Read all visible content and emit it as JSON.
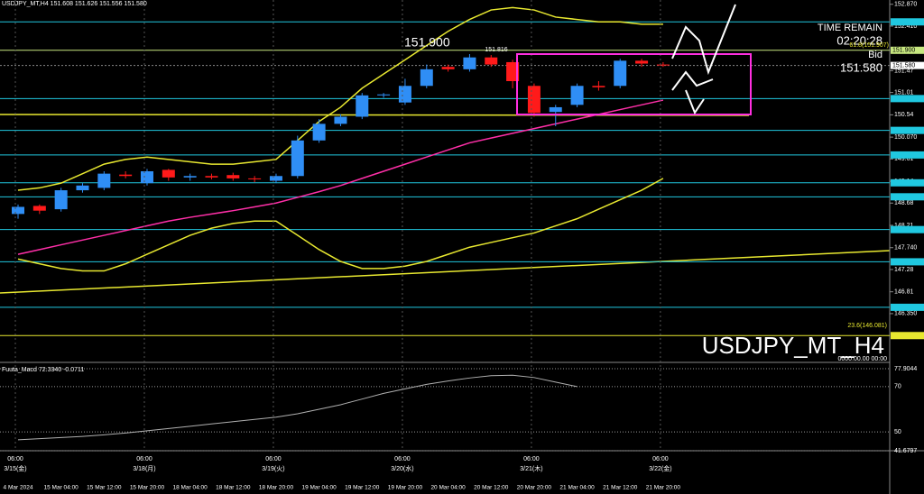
{
  "header": {
    "symbol": "USDJPY_MT,H4  151.608 151.626 151.556 151.580",
    "time_remain_label": "TIME REMAIN",
    "time_remain": "02:20:28",
    "bid_label": "Bid",
    "bid": "151.580",
    "high_mark": "151.816",
    "fib_top": "61.8(151.907)",
    "fib_bottom": "23.6(146.081)",
    "zero_time": "0000.00.00 00:00",
    "sessions": [
      {
        "time": "06:00",
        "date": "3/15(金)"
      },
      {
        "time": "06:00",
        "date": "3/18(月)"
      },
      {
        "time": "06:00",
        "date": "3/19(火)"
      },
      {
        "time": "06:00",
        "date": "3/20(水)"
      },
      {
        "time": "06:00",
        "date": "3/21(木)"
      },
      {
        "time": "06:00",
        "date": "3/22(金)"
      }
    ]
  },
  "chart_data": [
    {
      "type": "candlestick",
      "title": "USDJPY_MT_H4",
      "up_color": "#2f8ef5",
      "down_color": "#ff1a1a",
      "categories": [
        "4 Mar 2024",
        null,
        "15 Mar 04:00",
        null,
        "15 Mar 12:00",
        null,
        "15 Mar 20:00",
        null,
        "18 Mar 04:00",
        null,
        "18 Mar 12:00",
        null,
        "18 Mar 20:00",
        null,
        "19 Mar 04:00",
        null,
        "19 Mar 12:00",
        null,
        "19 Mar 20:00",
        null,
        "20 Mar 04:00",
        null,
        "20 Mar 12:00",
        null,
        "20 Mar 20:00",
        null,
        "21 Mar 04:00",
        null,
        "21 Mar 12:00",
        null,
        "21 Mar 20:00"
      ],
      "open": [
        148.45,
        148.62,
        148.55,
        148.95,
        149.0,
        149.28,
        149.1,
        149.38,
        149.22,
        149.25,
        149.27,
        149.2,
        149.15,
        149.25,
        150.0,
        150.35,
        150.5,
        150.95,
        150.8,
        151.15,
        151.55,
        151.5,
        151.75,
        151.65,
        151.15,
        150.6,
        150.75,
        151.15,
        151.15,
        151.68,
        151.6
      ],
      "high": [
        148.65,
        148.65,
        149.0,
        149.1,
        149.35,
        149.35,
        149.4,
        149.4,
        149.3,
        149.3,
        149.32,
        149.25,
        149.3,
        150.1,
        150.45,
        150.55,
        151.0,
        151.0,
        151.3,
        151.6,
        151.6,
        151.82,
        151.8,
        151.7,
        151.2,
        150.75,
        151.2,
        151.25,
        151.72,
        151.72,
        151.65
      ],
      "low": [
        148.35,
        148.45,
        148.5,
        148.9,
        148.95,
        149.2,
        149.05,
        149.15,
        149.15,
        149.18,
        149.15,
        149.12,
        149.1,
        149.2,
        149.95,
        150.3,
        150.45,
        150.9,
        150.75,
        151.1,
        151.45,
        151.45,
        151.55,
        151.1,
        150.5,
        150.3,
        150.7,
        151.05,
        151.1,
        151.55,
        151.55
      ],
      "close": [
        148.6,
        148.52,
        148.95,
        149.05,
        149.3,
        149.25,
        149.35,
        149.22,
        149.25,
        149.22,
        149.2,
        149.18,
        149.25,
        150.0,
        150.35,
        150.5,
        150.95,
        150.97,
        151.15,
        151.5,
        151.5,
        151.75,
        151.6,
        151.25,
        150.58,
        150.7,
        151.15,
        151.12,
        151.68,
        151.62,
        151.58
      ],
      "overlays": [
        {
          "color": "#e8e830",
          "values": [
            148.95,
            149.0,
            149.1,
            149.3,
            149.5,
            149.6,
            149.65,
            149.6,
            149.55,
            149.5,
            149.5,
            149.55,
            149.6,
            150.0,
            150.4,
            150.7,
            151.1,
            151.4,
            151.7,
            152.0,
            152.3,
            152.55,
            152.75,
            152.8,
            152.75,
            152.6,
            152.55,
            152.5,
            152.5,
            152.45,
            152.45
          ]
        },
        {
          "color": "#e8e830",
          "values": [
            147.5,
            147.4,
            147.3,
            147.25,
            147.25,
            147.4,
            147.6,
            147.8,
            148.0,
            148.15,
            148.25,
            148.3,
            148.3,
            148.0,
            147.7,
            147.45,
            147.3,
            147.3,
            147.35,
            147.45,
            147.6,
            147.75,
            147.85,
            147.95,
            148.05,
            148.2,
            148.35,
            148.55,
            148.75,
            148.95,
            149.2
          ]
        },
        {
          "color": "#ff2fa8",
          "values": [
            147.6,
            147.7,
            147.8,
            147.9,
            148.0,
            148.1,
            148.2,
            148.3,
            148.38,
            148.45,
            148.52,
            148.6,
            148.68,
            148.8,
            148.92,
            149.05,
            149.2,
            149.35,
            149.5,
            149.65,
            149.8,
            149.95,
            150.05,
            150.15,
            150.25,
            150.35,
            150.45,
            150.55,
            150.65,
            150.75,
            150.85
          ]
        }
      ],
      "levels": [
        {
          "value": 152.499,
          "color": "#20c8e0"
        },
        {
          "value": 151.9,
          "label": "151.900",
          "color": "#c8e880"
        },
        {
          "value": 150.882,
          "color": "#20c8e0"
        },
        {
          "value": 150.212,
          "color": "#20c8e0"
        },
        {
          "value": 149.694,
          "color": "#20c8e0"
        },
        {
          "value": 149.107,
          "color": "#20c8e0"
        },
        {
          "value": 148.812,
          "color": "#20c8e0"
        },
        {
          "value": 148.121,
          "color": "#20c8e0"
        },
        {
          "value": 147.442,
          "color": "#20c8e0"
        },
        {
          "value": 146.483,
          "color": "#20c8e0"
        },
        {
          "value": 145.887,
          "color": "#e8e830"
        }
      ],
      "last_price": {
        "value": 151.58,
        "label": "151.580"
      },
      "ylim": [
        152.96,
        145.36
      ],
      "yticks": [
        {
          "value": 152.87,
          "label": "152.870"
        },
        {
          "value": 152.41,
          "label": "152.410"
        },
        151.47,
        151.01,
        150.54,
        {
          "value": 150.07,
          "label": "150.070"
        },
        149.61,
        149.14,
        148.68,
        148.21,
        {
          "value": 147.74,
          "label": "147.740"
        },
        147.28,
        146.81,
        {
          "value": 146.35,
          "label": "146.350"
        }
      ]
    },
    {
      "type": "line",
      "title": "Fuuta_Macd 72.3340 -0.0711",
      "color": "#b0b0b0",
      "values": [
        46.5,
        47,
        47.5,
        48,
        48.7,
        49.5,
        50.5,
        51.5,
        52.5,
        53.5,
        54.5,
        55.5,
        56.5,
        58,
        60,
        62,
        64.5,
        67,
        69,
        71,
        72.5,
        73.8,
        74.8,
        75,
        74,
        72,
        70,
        null,
        null,
        null,
        null
      ],
      "ylim": [
        41.6797,
        77.9044
      ],
      "yticks": [
        77.9044,
        70,
        50,
        41.6797
      ],
      "grid": true
    }
  ]
}
